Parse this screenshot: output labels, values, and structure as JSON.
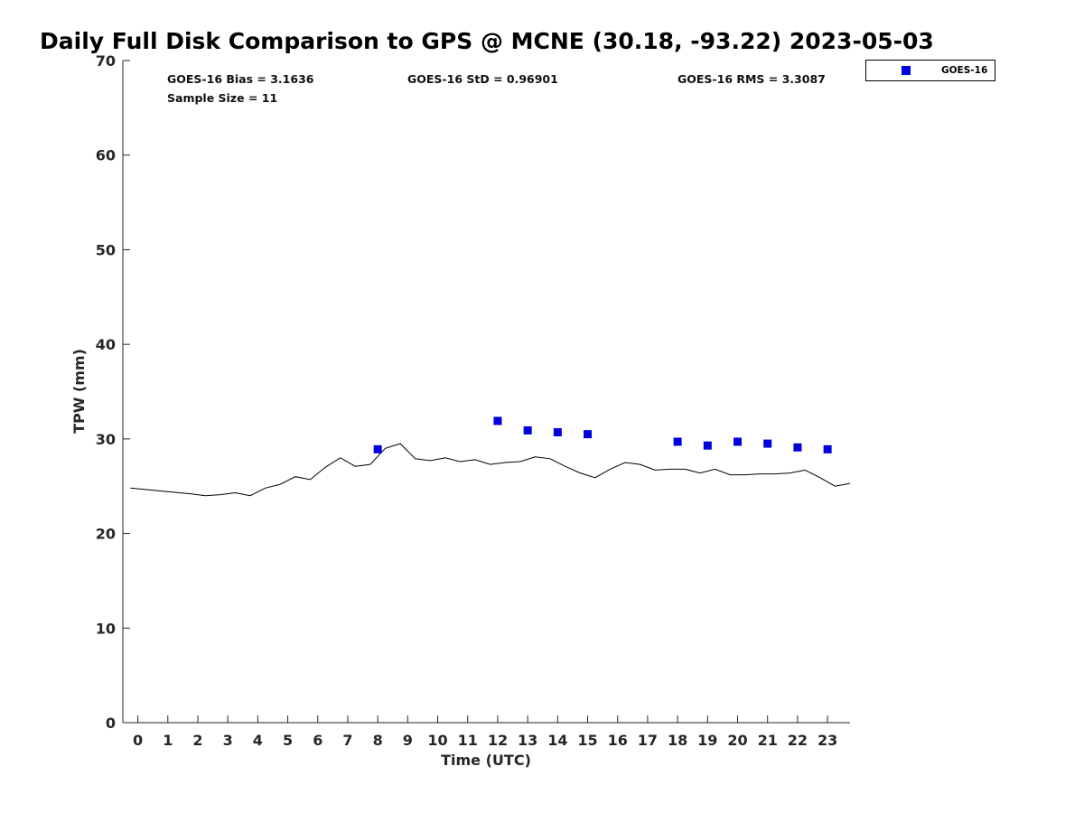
{
  "chart_data": {
    "type": "scatter",
    "title": "Daily Full Disk Comparison to GPS @ MCNE (30.18, -93.22) 2023-05-03",
    "xlabel": "Time (UTC)",
    "ylabel": "TPW (mm)",
    "xlim": [
      -0.5,
      23.75
    ],
    "ylim": [
      0,
      70
    ],
    "x_ticks": [
      0,
      1,
      2,
      3,
      4,
      5,
      6,
      7,
      8,
      9,
      10,
      11,
      12,
      13,
      14,
      15,
      16,
      17,
      18,
      19,
      20,
      21,
      22,
      23
    ],
    "y_ticks": [
      0,
      10,
      20,
      30,
      40,
      50,
      60,
      70
    ],
    "grid": false,
    "legend_position": "top-right-outside",
    "stats": {
      "bias": "GOES-16 Bias = 3.1636",
      "std": "GOES-16 StD = 0.96901",
      "rms": "GOES-16 RMS = 3.3087",
      "sample_size": "Sample Size = 11"
    },
    "series": [
      {
        "name": "GOES-16",
        "kind": "markers",
        "marker": "square",
        "color": "#0000dd",
        "x": [
          8,
          12,
          13,
          14,
          15,
          18,
          19,
          20,
          21,
          22,
          23
        ],
        "y": [
          28.9,
          31.9,
          30.9,
          30.7,
          30.5,
          29.7,
          29.3,
          29.7,
          29.5,
          29.1,
          28.9
        ]
      },
      {
        "kind": "line",
        "color": "#000000",
        "x": [
          -0.25,
          0.75,
          1.75,
          2.25,
          2.75,
          3.25,
          3.75,
          4.25,
          4.75,
          5.25,
          5.75,
          6.25,
          6.75,
          7.25,
          7.75,
          8.25,
          8.75,
          9.25,
          9.75,
          10.25,
          10.75,
          11.25,
          11.75,
          12.25,
          12.75,
          13.25,
          13.75,
          14.25,
          14.75,
          15.25,
          15.75,
          16.25,
          16.75,
          17.25,
          17.75,
          18.25,
          18.75,
          19.25,
          19.75,
          20.25,
          20.75,
          21.25,
          21.75,
          22.25,
          22.75,
          23.25,
          23.75
        ],
        "y": [
          24.8,
          24.5,
          24.2,
          24.0,
          24.1,
          24.3,
          24.0,
          24.8,
          25.2,
          26.0,
          25.7,
          27.0,
          28.0,
          27.1,
          27.3,
          29.0,
          29.5,
          27.9,
          27.7,
          28.0,
          27.6,
          27.8,
          27.3,
          27.5,
          27.6,
          28.1,
          27.9,
          27.1,
          26.4,
          25.9,
          26.8,
          27.5,
          27.3,
          26.7,
          26.8,
          26.8,
          26.4,
          26.8,
          26.2,
          26.2,
          26.3,
          26.3,
          26.4,
          26.7,
          25.9,
          25.0,
          25.3
        ]
      }
    ]
  }
}
